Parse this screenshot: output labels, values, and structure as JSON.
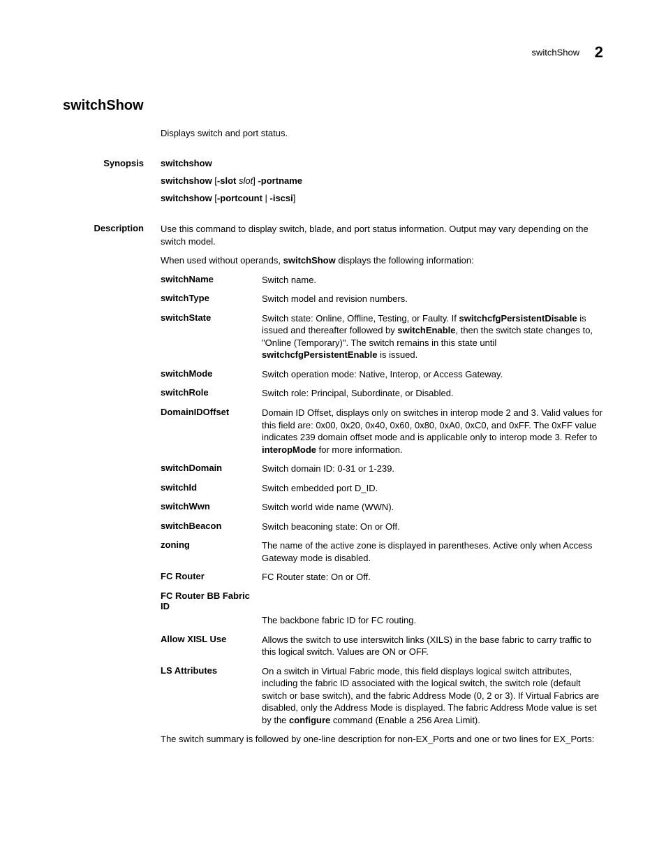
{
  "header": {
    "title": "switchShow",
    "chapter": "2"
  },
  "page": {
    "title": "switchShow",
    "intro": "Displays switch and port status.",
    "labels": {
      "synopsis": "Synopsis",
      "description": "Description"
    },
    "synopsis": {
      "l1": {
        "cmd": "switchshow"
      },
      "l2": {
        "cmd": "switchshow",
        "opt1a": " [",
        "opt1b": "-slot",
        "opt1c": " ",
        "opt1d": "slot",
        "opt1e": "] ",
        "opt2": "-portname"
      },
      "l3": {
        "cmd": "switchshow",
        "opt1a": " [",
        "opt1b": "-portcount",
        "opt1c": " | ",
        "opt1d": "-iscsi",
        "opt1e": "]"
      }
    },
    "description": {
      "p1": "Use this command to display switch, blade, and port status information. Output may vary depending on the switch model.",
      "p2a": "When used without operands, ",
      "p2b": "switchShow",
      "p2c": " displays the following information:",
      "defs": [
        {
          "term": "switchName",
          "desc": "Switch name."
        },
        {
          "term": "switchType",
          "desc": "Switch model and revision numbers."
        },
        {
          "term": "switchState",
          "parts": {
            "a": "Switch state: Online, Offline, Testing, or Faulty. If ",
            "b": "switchcfgPersistentDisable",
            "c": " is issued and thereafter followed by ",
            "d": "switchEnable",
            "e": ", then the switch state changes to, \"Online (Temporary)\". The switch remains in this state until ",
            "f": "switchcfgPersistentEnable",
            "g": " is issued."
          }
        },
        {
          "term": "switchMode",
          "desc": "Switch operation mode: Native, Interop, or Access Gateway."
        },
        {
          "term": "switchRole",
          "desc": "Switch role: Principal, Subordinate, or Disabled."
        },
        {
          "term": "DomainIDOffset",
          "parts": {
            "a": "Domain ID Offset, displays only on switches in interop mode 2 and 3. Valid values for this field are: 0x00, 0x20, 0x40, 0x60, 0x80, 0xA0, 0xC0, and 0xFF. The 0xFF value indicates 239 domain offset mode and is applicable only to interop mode 3. Refer to ",
            "b": "interopMode",
            "c": " for more information."
          }
        },
        {
          "term": "switchDomain",
          "desc": "Switch domain ID: 0-31 or 1-239."
        },
        {
          "term": "switchId",
          "desc": "Switch embedded port D_ID."
        },
        {
          "term": "switchWwn",
          "desc": "Switch world wide name (WWN)."
        },
        {
          "term": "switchBeacon",
          "desc": "Switch beaconing state: On or Off."
        },
        {
          "term": "zoning",
          "desc": "The name of the active zone is displayed in parentheses. Active only when Access Gateway mode is disabled."
        },
        {
          "term": "FC Router",
          "desc": "FC Router state: On or Off."
        },
        {
          "term": "FC Router BB Fabric ID",
          "desc": "The backbone fabric ID for FC routing.",
          "stacked": true
        },
        {
          "term": "Allow XISL Use",
          "desc": "Allows the switch to use interswitch links (XILS) in the base fabric to carry traffic to this logical switch. Values are ON or OFF."
        },
        {
          "term": "LS Attributes",
          "parts": {
            "a": "On a switch in Virtual Fabric mode, this field displays logical switch attributes, including the fabric ID associated with the logical switch, the switch role (default switch or base switch), and the fabric Address Mode (0, 2 or 3). If Virtual Fabrics are disabled, only the Address Mode is displayed. The fabric Address Mode value is set by the ",
            "b": "configure",
            "c": " command (Enable a 256 Area Limit)."
          }
        }
      ],
      "trail": "The switch summary is followed by one-line description for non-EX_Ports and one or two lines for EX_Ports:"
    }
  }
}
